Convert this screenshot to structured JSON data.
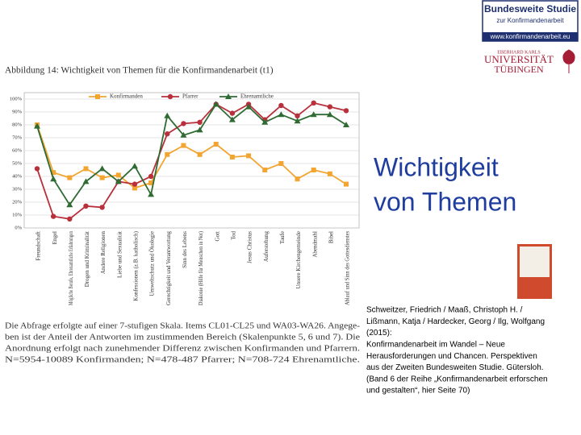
{
  "logo": {
    "title": "Bundesweite Studie",
    "subtitle": "zur Konfirmandenarbeit",
    "url": "www.konfirmandenarbeit.eu"
  },
  "university": {
    "line1": "EBERHARD KARLS",
    "line2": "UNIVERSITÄT",
    "line3": "TÜBINGEN"
  },
  "heading": [
    "Wichtigkeit",
    "von Themen"
  ],
  "caption": [
    "Die Abfrage erfolgte auf einer 7-stufigen Skala. Items CL01-CL25 und WA03-WA26. Angege-",
    "ben ist der Anteil der Antworten im zustimmenden Bereich (Skalenpunkte 5, 6 und 7). Die",
    "Anordnung erfolgt nach zunehmender Differenz zwischen Konfirmanden und Pfarrern.",
    "N=5954-10089 Konfirmanden; N=478-487 Pfarrer; N=708-724 Ehrenamtliche."
  ],
  "citation": [
    "Schweitzer, Friedrich / Maaß, Christoph H. /",
    "Lißmann, Katja / Hardecker, Georg / Ilg, Wolfgang",
    "(2015):",
    "Konfirmandenarbeit im Wandel – Neue",
    "Herausforderungen und Chancen. Perspektiven",
    "aus der Zweiten Bundesweiten Studie. Gütersloh.",
    "(Band 6 der Reihe „Konfirmandenarbeit erforschen",
    "und gestalten“, hier Seite 70)"
  ],
  "chart_data": {
    "type": "line",
    "title": "Abbildung 14: Wichtigkeit von Themen für die Konfirmandenarbeit (t1)",
    "categories": [
      "Freundschaft",
      "Engel",
      "Mögliche Berufe, Ehrenamtliche Erfahrungen",
      "Drogen und Kriminalität",
      "Andere Religionen",
      "Liebe und Sexualität",
      "Konfessionen (z.B. katholisch)",
      "Umweltschutz und Ökologie",
      "Gerechtigkeit und Verantwortung",
      "Sinn des Lebens",
      "Diakonie (Hilfe für Menschen in Not)",
      "Gott",
      "Tod",
      "Jesus Christus",
      "Auferstehung",
      "Taufe",
      "Unsere Kirchengemeinde",
      "Abendmahl",
      "Bibel",
      "Ablauf und Sinn des Gottesdienstes"
    ],
    "series": [
      {
        "name": "Konfirmanden",
        "color": "#f2a531",
        "marker": "square",
        "values": [
          80,
          43,
          39,
          46,
          39,
          41,
          31,
          35,
          57,
          64,
          57,
          65,
          55,
          56,
          45,
          50,
          38,
          45,
          42,
          34
        ]
      },
      {
        "name": "Pfarrer",
        "color": "#b8303c",
        "marker": "circle",
        "values": [
          46,
          9,
          7,
          17,
          16,
          36,
          34,
          40,
          73,
          81,
          82,
          96,
          89,
          96,
          84,
          95,
          87,
          97,
          94,
          91
        ]
      },
      {
        "name": "Ehrenamtliche",
        "color": "#2f6b33",
        "marker": "triangle",
        "values": [
          79,
          38,
          18,
          36,
          46,
          36,
          48,
          26,
          87,
          72,
          76,
          96,
          84,
          94,
          82,
          88,
          83,
          88,
          88,
          80
        ]
      }
    ],
    "ylim": [
      0,
      100
    ],
    "yticks": [
      {
        "value": 0,
        "label": "0%"
      },
      {
        "value": 10,
        "label": "10%"
      },
      {
        "value": 20,
        "label": "20%"
      },
      {
        "value": 30,
        "label": "30%"
      },
      {
        "value": 40,
        "label": "40%"
      },
      {
        "value": 50,
        "label": "50%"
      },
      {
        "value": 60,
        "label": "60%"
      },
      {
        "value": 70,
        "label": "70%"
      },
      {
        "value": 80,
        "label": "80%"
      },
      {
        "value": 90,
        "label": "90%"
      },
      {
        "value": 100,
        "label": "100%"
      }
    ],
    "grid": true,
    "legend": "top"
  }
}
